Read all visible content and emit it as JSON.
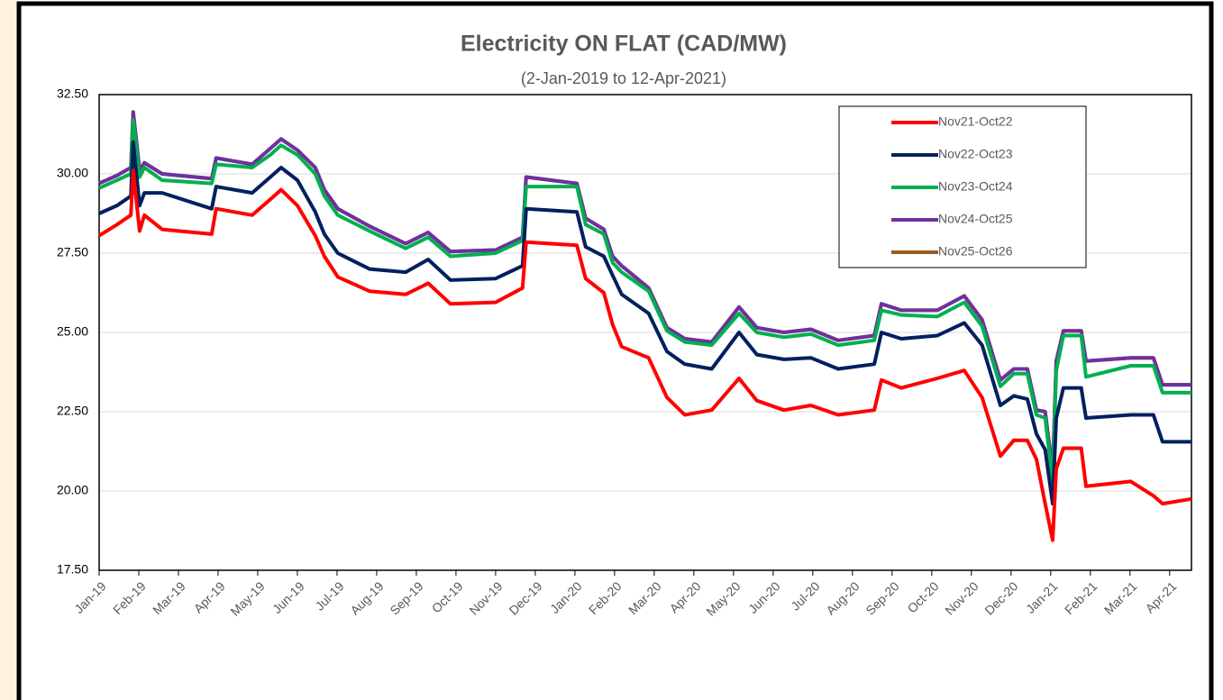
{
  "chart_data": {
    "type": "line",
    "title": "Electricity ON FLAT (CAD/MW)",
    "subtitle": "(2-Jan-2019 to 12-Apr-2021)",
    "x": [
      0.0,
      0.45,
      0.8,
      0.86,
      1.02,
      1.14,
      1.59,
      2.84,
      2.95,
      3.86,
      4.32,
      4.59,
      5.0,
      5.45,
      5.68,
      6.02,
      6.82,
      7.73,
      8.3,
      8.86,
      10.0,
      10.68,
      10.77,
      12.05,
      12.27,
      12.73,
      12.95,
      13.18,
      13.86,
      14.32,
      14.77,
      15.45,
      16.14,
      16.59,
      17.27,
      17.95,
      18.64,
      19.55,
      19.73,
      20.23,
      21.14,
      21.82,
      22.27,
      22.73,
      23.07,
      23.41,
      23.64,
      23.86,
      24.05,
      24.14,
      24.32,
      24.77,
      24.89,
      26.02,
      26.59,
      26.82,
      27.55
    ],
    "xlim": [
      0,
      27.55
    ],
    "xticks": [
      {
        "value": 0,
        "label": "Jan-19"
      },
      {
        "value": 1,
        "label": "Feb-19"
      },
      {
        "value": 2,
        "label": "Mar-19"
      },
      {
        "value": 3,
        "label": "Apr-19"
      },
      {
        "value": 4,
        "label": "May-19"
      },
      {
        "value": 5,
        "label": "Jun-19"
      },
      {
        "value": 6,
        "label": "Jul-19"
      },
      {
        "value": 7,
        "label": "Aug-19"
      },
      {
        "value": 8,
        "label": "Sep-19"
      },
      {
        "value": 9,
        "label": "Oct-19"
      },
      {
        "value": 10,
        "label": "Nov-19"
      },
      {
        "value": 11,
        "label": "Dec-19"
      },
      {
        "value": 12,
        "label": "Jan-20"
      },
      {
        "value": 13,
        "label": "Feb-20"
      },
      {
        "value": 14,
        "label": "Mar-20"
      },
      {
        "value": 15,
        "label": "Apr-20"
      },
      {
        "value": 16,
        "label": "May-20"
      },
      {
        "value": 17,
        "label": "Jun-20"
      },
      {
        "value": 18,
        "label": "Jul-20"
      },
      {
        "value": 19,
        "label": "Aug-20"
      },
      {
        "value": 20,
        "label": "Sep-20"
      },
      {
        "value": 21,
        "label": "Oct-20"
      },
      {
        "value": 22,
        "label": "Nov-20"
      },
      {
        "value": 23,
        "label": "Dec-20"
      },
      {
        "value": 24,
        "label": "Jan-21"
      },
      {
        "value": 25,
        "label": "Feb-21"
      },
      {
        "value": 26,
        "label": "Mar-21"
      },
      {
        "value": 27,
        "label": "Apr-21"
      }
    ],
    "ylim": [
      17.5,
      32.5
    ],
    "yticks": [
      {
        "value": 17.5,
        "label": "17.50"
      },
      {
        "value": 20,
        "label": "20.00"
      },
      {
        "value": 22.5,
        "label": "22.50"
      },
      {
        "value": 25,
        "label": "25.00"
      },
      {
        "value": 27.5,
        "label": "27.50"
      },
      {
        "value": 30,
        "label": "30.00"
      },
      {
        "value": 32.5,
        "label": "32.50"
      }
    ],
    "grid": true,
    "legend": "upper right",
    "series": [
      {
        "name": "Nov21-Oct22",
        "color": "#ff0000",
        "values": [
          28.05,
          28.4,
          28.7,
          30.1,
          28.2,
          28.7,
          28.25,
          28.1,
          28.9,
          28.7,
          29.2,
          29.5,
          29.0,
          28.05,
          27.4,
          26.75,
          26.3,
          26.2,
          26.55,
          25.9,
          25.95,
          26.4,
          27.85,
          27.75,
          26.7,
          26.25,
          25.25,
          24.55,
          24.2,
          22.95,
          22.4,
          22.55,
          23.55,
          22.85,
          22.55,
          22.7,
          22.4,
          22.55,
          23.5,
          23.25,
          23.55,
          23.8,
          22.95,
          21.1,
          21.6,
          21.6,
          21.0,
          19.6,
          18.45,
          20.7,
          21.35,
          21.35,
          20.15,
          20.3,
          19.85,
          19.6,
          19.75
        ]
      },
      {
        "name": "Nov22-Oct23",
        "color": "#002060",
        "values": [
          28.75,
          29.0,
          29.3,
          31.0,
          29.0,
          29.4,
          29.4,
          28.9,
          29.6,
          29.4,
          29.9,
          30.2,
          29.8,
          28.8,
          28.1,
          27.5,
          27.0,
          26.9,
          27.3,
          26.65,
          26.7,
          27.1,
          28.9,
          28.8,
          27.7,
          27.4,
          26.8,
          26.2,
          25.6,
          24.4,
          24.0,
          23.85,
          25.0,
          24.3,
          24.15,
          24.2,
          23.85,
          24.0,
          25.0,
          24.8,
          24.9,
          25.3,
          24.6,
          22.7,
          23.0,
          22.9,
          21.8,
          21.3,
          19.6,
          22.3,
          23.25,
          23.25,
          22.3,
          22.4,
          22.4,
          21.55,
          21.55
        ]
      },
      {
        "name": "Nov23-Oct24",
        "color": "#00b050",
        "values": [
          29.55,
          29.8,
          30.0,
          31.7,
          29.9,
          30.2,
          29.8,
          29.7,
          30.3,
          30.2,
          30.6,
          30.9,
          30.6,
          30.0,
          29.3,
          28.7,
          28.2,
          27.65,
          28.0,
          27.4,
          27.5,
          27.9,
          29.6,
          29.6,
          28.4,
          28.1,
          27.2,
          26.9,
          26.3,
          25.05,
          24.7,
          24.6,
          25.6,
          25.0,
          24.85,
          24.95,
          24.6,
          24.75,
          25.7,
          25.55,
          25.5,
          25.95,
          25.2,
          23.3,
          23.7,
          23.7,
          22.4,
          22.3,
          20.3,
          23.8,
          24.9,
          24.9,
          23.6,
          23.95,
          23.95,
          23.1,
          23.1
        ]
      },
      {
        "name": "Nov24-Oct25",
        "color": "#7030a0",
        "values": [
          29.7,
          29.95,
          30.2,
          31.95,
          30.1,
          30.35,
          30.0,
          29.85,
          30.5,
          30.3,
          30.8,
          31.1,
          30.75,
          30.2,
          29.5,
          28.9,
          28.35,
          27.8,
          28.15,
          27.55,
          27.6,
          28.0,
          29.9,
          29.7,
          28.6,
          28.25,
          27.4,
          27.1,
          26.4,
          25.15,
          24.8,
          24.7,
          25.8,
          25.15,
          25.0,
          25.1,
          24.75,
          24.9,
          25.9,
          25.7,
          25.7,
          26.15,
          25.4,
          23.5,
          23.85,
          23.85,
          22.55,
          22.5,
          20.6,
          24.1,
          25.05,
          25.05,
          24.1,
          24.2,
          24.2,
          23.35,
          23.35
        ]
      },
      {
        "name": "Nov25-Oct26",
        "color": "#9c5a1e",
        "values": [
          29.7,
          29.95,
          30.2,
          31.95,
          30.1,
          30.35,
          30.0,
          29.85,
          30.5,
          30.3,
          30.8,
          31.1,
          30.75,
          30.2,
          29.5,
          28.9,
          28.35,
          27.8,
          28.15,
          27.55,
          27.6,
          28.0,
          29.9,
          29.7,
          28.6,
          28.25,
          27.4,
          27.1,
          26.4,
          25.15,
          24.8,
          24.7,
          25.8,
          25.15,
          25.0,
          25.1,
          24.75,
          24.9,
          25.9,
          25.7,
          25.7,
          26.15,
          25.4,
          23.5,
          23.85,
          23.85,
          22.55,
          22.5,
          20.6,
          24.1,
          25.05,
          25.05,
          24.1,
          24.2,
          24.2,
          23.35,
          23.35
        ]
      }
    ]
  }
}
